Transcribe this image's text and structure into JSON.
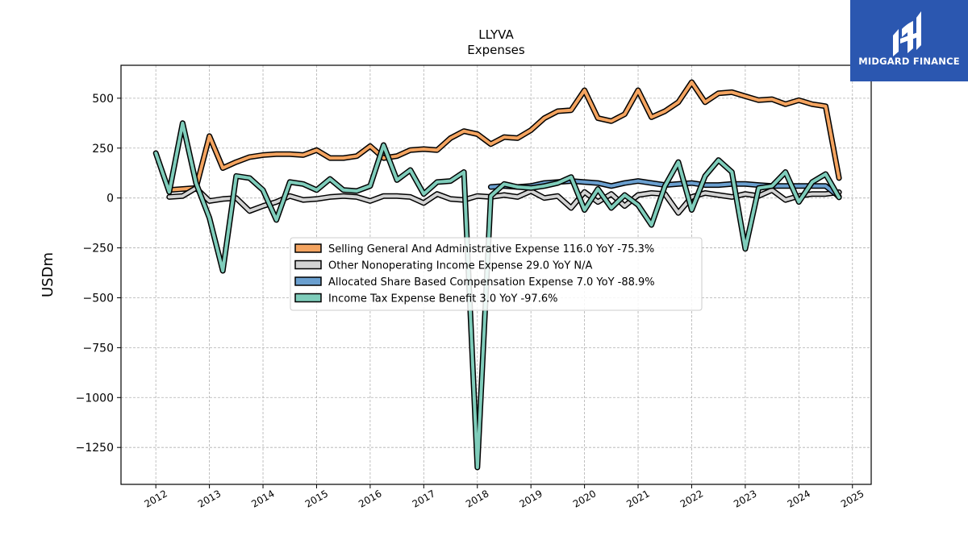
{
  "chart_data": {
    "type": "line",
    "title": "LLYVA",
    "subtitle": "Expenses",
    "xlabel": "",
    "ylabel": "USDm",
    "xlim": [
      2011.35,
      2025.35
    ],
    "ylim": [
      -1435,
      665
    ],
    "x_ticks": [
      "2012",
      "2013",
      "2014",
      "2015",
      "2016",
      "2017",
      "2018",
      "2019",
      "2020",
      "2021",
      "2022",
      "2023",
      "2024",
      "2025"
    ],
    "y_ticks": [
      500,
      250,
      0,
      -250,
      -500,
      -750,
      -1000,
      -1250
    ],
    "y_tick_labels": [
      "500",
      "250",
      "0",
      "−250",
      "−500",
      "−750",
      "−1000",
      "−1250"
    ],
    "grid": true,
    "legend_position": "center",
    "series": [
      {
        "name": "Selling General And Administrative Expense",
        "legend": "Selling General And Administrative Expense  116.0 YoY -75.3%",
        "color": "#f4a460",
        "points": [
          [
            2012.25,
            40
          ],
          [
            2012.5,
            45
          ],
          [
            2012.75,
            50
          ],
          [
            2013.0,
            310
          ],
          [
            2013.25,
            150
          ],
          [
            2013.5,
            180
          ],
          [
            2013.75,
            205
          ],
          [
            2014.0,
            215
          ],
          [
            2014.25,
            220
          ],
          [
            2014.5,
            220
          ],
          [
            2014.75,
            215
          ],
          [
            2015.0,
            240
          ],
          [
            2015.25,
            200
          ],
          [
            2015.5,
            200
          ],
          [
            2015.75,
            210
          ],
          [
            2016.0,
            260
          ],
          [
            2016.25,
            200
          ],
          [
            2016.5,
            210
          ],
          [
            2016.75,
            240
          ],
          [
            2017.0,
            245
          ],
          [
            2017.25,
            240
          ],
          [
            2017.5,
            300
          ],
          [
            2017.75,
            335
          ],
          [
            2018.0,
            320
          ],
          [
            2018.25,
            270
          ],
          [
            2018.5,
            305
          ],
          [
            2018.75,
            300
          ],
          [
            2019.0,
            340
          ],
          [
            2019.25,
            400
          ],
          [
            2019.5,
            435
          ],
          [
            2019.75,
            440
          ],
          [
            2020.0,
            540
          ],
          [
            2020.25,
            400
          ],
          [
            2020.5,
            385
          ],
          [
            2020.75,
            420
          ],
          [
            2021.0,
            540
          ],
          [
            2021.25,
            405
          ],
          [
            2021.5,
            435
          ],
          [
            2021.75,
            480
          ],
          [
            2022.0,
            580
          ],
          [
            2022.25,
            480
          ],
          [
            2022.5,
            525
          ],
          [
            2022.75,
            530
          ],
          [
            2023.0,
            510
          ],
          [
            2023.25,
            490
          ],
          [
            2023.5,
            495
          ],
          [
            2023.75,
            470
          ],
          [
            2024.0,
            490
          ],
          [
            2024.25,
            470
          ],
          [
            2024.5,
            460
          ],
          [
            2024.75,
            100
          ]
        ]
      },
      {
        "name": "Other Nonoperating Income Expense",
        "legend": "Other Nonoperating Income Expense  29.0 YoY N/A",
        "color": "#d3d3d3",
        "points": [
          [
            2012.25,
            5
          ],
          [
            2012.5,
            10
          ],
          [
            2012.75,
            50
          ],
          [
            2013.0,
            -15
          ],
          [
            2013.25,
            -5
          ],
          [
            2013.5,
            0
          ],
          [
            2013.75,
            -65
          ],
          [
            2014.0,
            -40
          ],
          [
            2014.25,
            -20
          ],
          [
            2014.5,
            10
          ],
          [
            2014.75,
            -10
          ],
          [
            2015.0,
            -5
          ],
          [
            2015.25,
            5
          ],
          [
            2015.5,
            10
          ],
          [
            2015.75,
            5
          ],
          [
            2016.0,
            -15
          ],
          [
            2016.25,
            10
          ],
          [
            2016.5,
            10
          ],
          [
            2016.75,
            5
          ],
          [
            2017.0,
            -25
          ],
          [
            2017.25,
            20
          ],
          [
            2017.5,
            -5
          ],
          [
            2017.75,
            -10
          ],
          [
            2018.0,
            10
          ],
          [
            2018.25,
            5
          ],
          [
            2018.5,
            15
          ],
          [
            2018.75,
            5
          ],
          [
            2019.0,
            35
          ],
          [
            2019.25,
            0
          ],
          [
            2019.5,
            10
          ],
          [
            2019.75,
            -50
          ],
          [
            2020.0,
            30
          ],
          [
            2020.25,
            -20
          ],
          [
            2020.5,
            20
          ],
          [
            2020.75,
            -40
          ],
          [
            2021.0,
            15
          ],
          [
            2021.25,
            25
          ],
          [
            2021.5,
            20
          ],
          [
            2021.75,
            -75
          ],
          [
            2022.0,
            5
          ],
          [
            2022.25,
            25
          ],
          [
            2022.5,
            15
          ],
          [
            2022.75,
            5
          ],
          [
            2023.0,
            20
          ],
          [
            2023.25,
            10
          ],
          [
            2023.5,
            40
          ],
          [
            2023.75,
            -10
          ],
          [
            2024.0,
            10
          ],
          [
            2024.25,
            20
          ],
          [
            2024.5,
            20
          ],
          [
            2024.75,
            29
          ]
        ]
      },
      {
        "name": "Allocated Share Based Compensation Expense",
        "legend": "Allocated Share Based Compensation Expense  7.0 YoY -88.9%",
        "color": "#6a9fcf",
        "points": [
          [
            2018.25,
            55
          ],
          [
            2018.5,
            60
          ],
          [
            2018.75,
            55
          ],
          [
            2019.0,
            60
          ],
          [
            2019.25,
            75
          ],
          [
            2019.5,
            80
          ],
          [
            2019.75,
            85
          ],
          [
            2020.0,
            80
          ],
          [
            2020.25,
            75
          ],
          [
            2020.5,
            60
          ],
          [
            2020.75,
            75
          ],
          [
            2021.0,
            85
          ],
          [
            2021.25,
            75
          ],
          [
            2021.5,
            65
          ],
          [
            2021.75,
            70
          ],
          [
            2022.0,
            75
          ],
          [
            2022.25,
            65
          ],
          [
            2022.5,
            65
          ],
          [
            2022.75,
            70
          ],
          [
            2023.0,
            70
          ],
          [
            2023.25,
            65
          ],
          [
            2023.5,
            60
          ],
          [
            2023.75,
            60
          ],
          [
            2024.0,
            60
          ],
          [
            2024.25,
            60
          ],
          [
            2024.5,
            60
          ],
          [
            2024.75,
            7
          ]
        ]
      },
      {
        "name": "Income Tax Expense Benefit",
        "legend": "Income Tax Expense Benefit  3.0 YoY -97.6%",
        "color": "#7fcdbb",
        "points": [
          [
            2012.0,
            225
          ],
          [
            2012.25,
            30
          ],
          [
            2012.5,
            375
          ],
          [
            2012.75,
            75
          ],
          [
            2013.0,
            -100
          ],
          [
            2013.25,
            -365
          ],
          [
            2013.5,
            110
          ],
          [
            2013.75,
            100
          ],
          [
            2014.0,
            40
          ],
          [
            2014.25,
            -110
          ],
          [
            2014.5,
            80
          ],
          [
            2014.75,
            70
          ],
          [
            2015.0,
            40
          ],
          [
            2015.25,
            95
          ],
          [
            2015.5,
            40
          ],
          [
            2015.75,
            35
          ],
          [
            2016.0,
            60
          ],
          [
            2016.25,
            265
          ],
          [
            2016.5,
            90
          ],
          [
            2016.75,
            140
          ],
          [
            2017.0,
            20
          ],
          [
            2017.25,
            80
          ],
          [
            2017.5,
            85
          ],
          [
            2017.75,
            130
          ],
          [
            2018.0,
            -1350
          ],
          [
            2018.25,
            10
          ],
          [
            2018.5,
            70
          ],
          [
            2018.75,
            55
          ],
          [
            2019.0,
            50
          ],
          [
            2019.25,
            60
          ],
          [
            2019.5,
            75
          ],
          [
            2019.75,
            105
          ],
          [
            2020.0,
            -60
          ],
          [
            2020.25,
            45
          ],
          [
            2020.5,
            -50
          ],
          [
            2020.75,
            15
          ],
          [
            2021.0,
            -35
          ],
          [
            2021.25,
            -135
          ],
          [
            2021.5,
            60
          ],
          [
            2021.75,
            180
          ],
          [
            2022.0,
            -60
          ],
          [
            2022.25,
            110
          ],
          [
            2022.5,
            190
          ],
          [
            2022.75,
            130
          ],
          [
            2023.0,
            -255
          ],
          [
            2023.25,
            50
          ],
          [
            2023.5,
            60
          ],
          [
            2023.75,
            130
          ],
          [
            2024.0,
            -20
          ],
          [
            2024.25,
            80
          ],
          [
            2024.5,
            120
          ],
          [
            2024.75,
            3
          ]
        ]
      }
    ]
  },
  "logo": {
    "text": "MIDGARD FINANCE",
    "color": "#2b57b0"
  }
}
